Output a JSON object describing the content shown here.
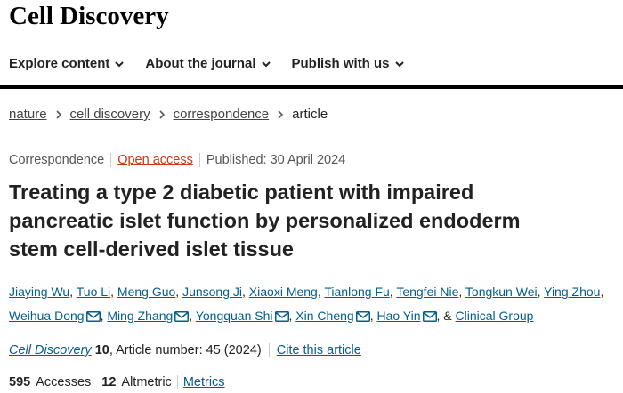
{
  "header": {
    "title": "Cell Discovery",
    "nav": [
      "Explore content",
      "About the journal",
      "Publish with us"
    ]
  },
  "breadcrumbs": [
    "nature",
    "cell discovery",
    "correspondence",
    "article"
  ],
  "article": {
    "type": "Correspondence",
    "access": "Open access",
    "published": "Published: 30 April 2024",
    "title": "Treating a type 2 diabetic patient with impaired pancreatic islet function by personalized endoderm stem cell-derived islet tissue",
    "authors": [
      {
        "name": "Jiaying Wu",
        "email": false
      },
      {
        "name": "Tuo Li",
        "email": false
      },
      {
        "name": "Meng Guo",
        "email": false
      },
      {
        "name": "Junsong Ji",
        "email": false
      },
      {
        "name": "Xiaoxi Meng",
        "email": false
      },
      {
        "name": "Tianlong Fu",
        "email": false
      },
      {
        "name": "Tengfei Nie",
        "email": false
      },
      {
        "name": "Tongkun Wei",
        "email": false
      },
      {
        "name": "Ying Zhou",
        "email": false
      },
      {
        "name": "Weihua Dong",
        "email": true
      },
      {
        "name": "Ming Zhang",
        "email": true
      },
      {
        "name": "Yongquan Shi",
        "email": true
      },
      {
        "name": "Xin Cheng",
        "email": true
      },
      {
        "name": "Hao Yin",
        "email": true
      }
    ],
    "group_joiner": "&",
    "group": "Clinical Group",
    "journal": "Cell Discovery",
    "volume": "10",
    "article_number": ", Article number: 45 (2024)",
    "cite": "Cite this article",
    "accesses": "595",
    "accesses_label": "Accesses",
    "altmetric": "12",
    "altmetric_label": "Altmetric",
    "metrics": "Metrics"
  }
}
